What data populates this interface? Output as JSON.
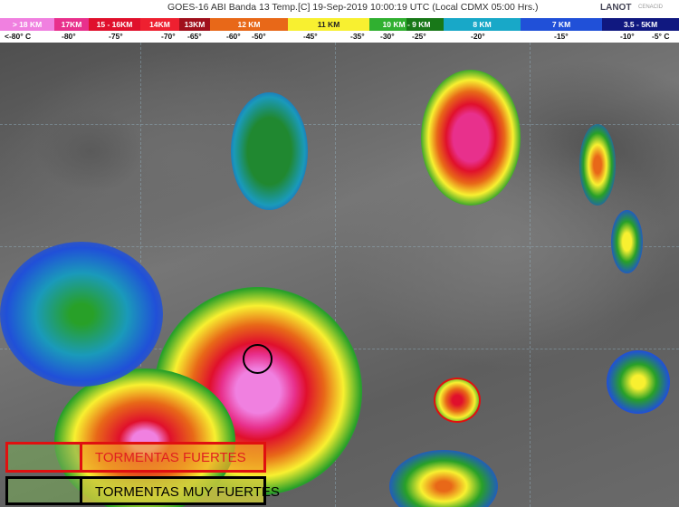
{
  "header": {
    "title": "GOES-16 ABI Banda 13 Temp.[C] 19-Sep-2019 10:00:19 UTC (Local CDMX  05:00 Hrs.)",
    "logo_lanot": "LANOT",
    "logo_cenacid": "CENACID"
  },
  "scale": {
    "segments": [
      {
        "label": "> 18 KM",
        "color": "#f080e0"
      },
      {
        "label": "17KM",
        "color": "#e8308c"
      },
      {
        "label": "15 - 16KM",
        "color": "#e0102c"
      },
      {
        "label": "14KM",
        "color": "#ee2030"
      },
      {
        "label": "13KM",
        "color": "#a0101c"
      },
      {
        "label": "12 KM",
        "color": "#e86818"
      },
      {
        "label": "11 KM",
        "color": "#f8f030"
      },
      {
        "label": "10 KM - 9 KM",
        "color": "#28a028"
      },
      {
        "label": "8 KM",
        "color": "#18a8c8"
      },
      {
        "label": "7 KM",
        "color": "#2050d8"
      },
      {
        "label": "3.5 - 5KM",
        "color": "#101880"
      }
    ],
    "temps": [
      "<-80° C",
      "-80°",
      "-75°",
      "-70°",
      "-65°",
      "-60°",
      "-50°",
      "-45°",
      "-35°",
      "-30°",
      "-25°",
      "-20°",
      "-15°",
      "-10°",
      "-5° C"
    ]
  },
  "legend": {
    "strong": "TORMENTAS FUERTES",
    "very_strong": "TORMENTAS MUY FUERTES",
    "strong_color": "#e01010",
    "very_strong_color": "#000000"
  }
}
